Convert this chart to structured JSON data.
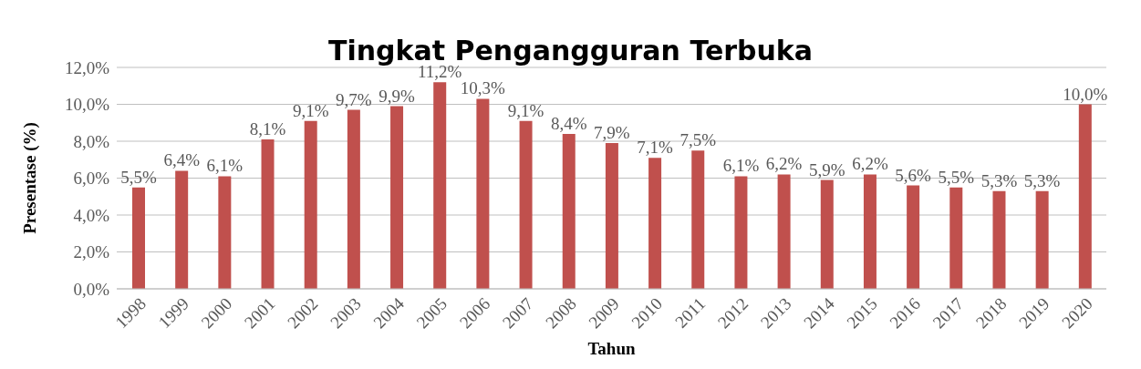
{
  "chart_data": {
    "type": "bar",
    "title": "Tingkat Pengangguran Terbuka",
    "xlabel": "Tahun",
    "ylabel": "Presentase (%)",
    "categories": [
      "1998",
      "1999",
      "2000",
      "2001",
      "2002",
      "2003",
      "2004",
      "2005",
      "2006",
      "2007",
      "2008",
      "2009",
      "2010",
      "2011",
      "2012",
      "2013",
      "2014",
      "2015",
      "2016",
      "2017",
      "2018",
      "2019",
      "2020"
    ],
    "values": [
      5.5,
      6.4,
      6.1,
      8.1,
      9.1,
      9.7,
      9.9,
      11.2,
      10.3,
      9.1,
      8.4,
      7.9,
      7.1,
      7.5,
      6.1,
      6.2,
      5.9,
      6.2,
      5.6,
      5.5,
      5.3,
      5.3,
      10.0
    ],
    "value_labels": [
      "5,5%",
      "6,4%",
      "6,1%",
      "8,1%",
      "9,1%",
      "9,7%",
      "9,9%",
      "11,2%",
      "10,3%",
      "9,1%",
      "8,4%",
      "7,9%",
      "7,1%",
      "7,5%",
      "6,1%",
      "6,2%",
      "5,9%",
      "6,2%",
      "5,6%",
      "5,5%",
      "5,3%",
      "5,3%",
      "10,0%"
    ],
    "color": "#c0504d",
    "ylim": [
      0,
      12
    ],
    "yticks": [
      {
        "value": 0,
        "label": "0,0%"
      },
      {
        "value": 2,
        "label": "2,0%"
      },
      {
        "value": 4,
        "label": "4,0%"
      },
      {
        "value": 6,
        "label": "6,0%"
      },
      {
        "value": 8,
        "label": "8,0%"
      },
      {
        "value": 10,
        "label": "10,0%"
      },
      {
        "value": 12,
        "label": "12,0%"
      }
    ],
    "grid": "y"
  }
}
